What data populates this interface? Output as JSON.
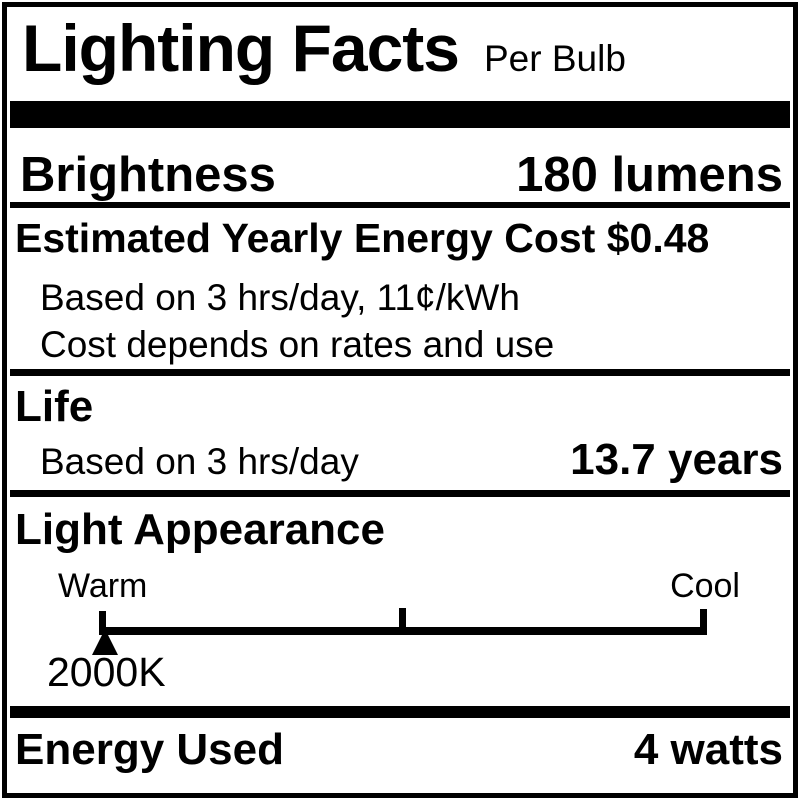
{
  "label": {
    "title": "Lighting Facts",
    "subtitle": "Per Bulb",
    "brightness": {
      "label": "Brightness",
      "value": "180 lumens"
    },
    "energy_cost": {
      "label": "Estimated Yearly Energy Cost $0.48",
      "notes": [
        "Based on 3 hrs/day, 11¢/kWh",
        "Cost depends on rates and use"
      ]
    },
    "life": {
      "label": "Life",
      "note": "Based on 3 hrs/day",
      "value": "13.7 years"
    },
    "light_appearance": {
      "label": "Light Appearance",
      "warm_label": "Warm",
      "cool_label": "Cool",
      "marker_value": "2000K"
    },
    "energy_used": {
      "label": "Energy Used",
      "value": "4 watts"
    },
    "colors": {
      "ink": "#000000",
      "background": "#ffffff"
    }
  }
}
